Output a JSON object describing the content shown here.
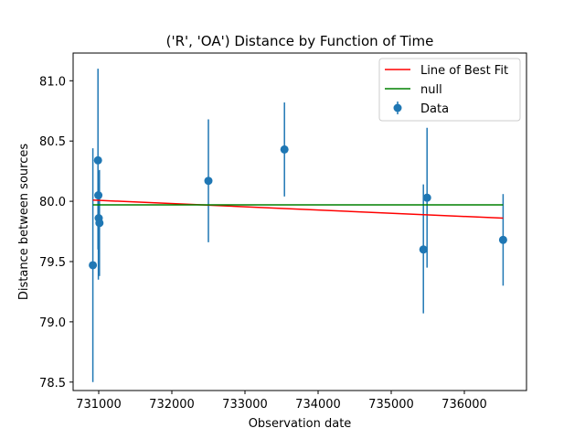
{
  "chart_data": {
    "type": "scatter",
    "title": "('R', 'OA') Distance by Function of Time",
    "xlabel": "Observation date",
    "ylabel": "Distance between sources",
    "xlim": [
      730650,
      736850
    ],
    "ylim": [
      78.43,
      81.23
    ],
    "xticks": [
      731000,
      732000,
      733000,
      734000,
      735000,
      736000
    ],
    "yticks": [
      78.5,
      79.0,
      79.5,
      80.0,
      80.5,
      81.0
    ],
    "xtick_labels": [
      "731000",
      "732000",
      "733000",
      "734000",
      "735000",
      "736000"
    ],
    "ytick_labels": [
      "78.5",
      "79.0",
      "79.5",
      "80.0",
      "80.5",
      "81.0"
    ],
    "grid": false,
    "legend_position": "top-right",
    "series": [
      {
        "name": "Data",
        "kind": "errorbar",
        "color": "#1f77b4",
        "points": [
          {
            "x": 730920,
            "y": 79.47,
            "err_low": 0.97,
            "err_high": 0.97
          },
          {
            "x": 730990,
            "y": 80.34,
            "err_low": 0.74,
            "err_high": 0.76
          },
          {
            "x": 730995,
            "y": 80.05,
            "err_low": 0.7,
            "err_high": 0.2
          },
          {
            "x": 731000,
            "y": 79.86,
            "err_low": 0.29,
            "err_high": 0.29
          },
          {
            "x": 731010,
            "y": 79.82,
            "err_low": 0.44,
            "err_high": 0.44
          },
          {
            "x": 732500,
            "y": 80.17,
            "err_low": 0.51,
            "err_high": 0.51
          },
          {
            "x": 733540,
            "y": 80.43,
            "err_low": 0.39,
            "err_high": 0.39
          },
          {
            "x": 735440,
            "y": 79.6,
            "err_low": 0.53,
            "err_high": 0.54
          },
          {
            "x": 735490,
            "y": 80.03,
            "err_low": 0.58,
            "err_high": 0.58
          },
          {
            "x": 736530,
            "y": 79.68,
            "err_low": 0.38,
            "err_high": 0.38
          }
        ]
      },
      {
        "name": "Line of Best Fit",
        "kind": "line",
        "color": "#ff0000",
        "x": [
          730920,
          736530
        ],
        "y": [
          80.01,
          79.86
        ]
      },
      {
        "name": "null",
        "kind": "line",
        "color": "#008000",
        "x": [
          730920,
          736530
        ],
        "y": [
          79.97,
          79.97
        ]
      }
    ],
    "legend": [
      "Line of Best Fit",
      "null",
      "Data"
    ]
  }
}
